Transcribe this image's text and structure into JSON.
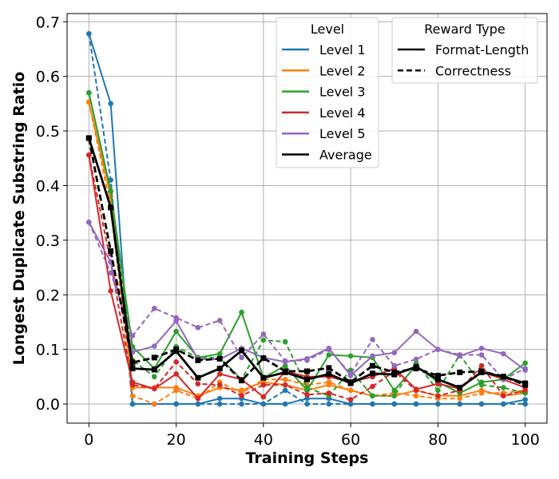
{
  "chart_data": {
    "type": "line",
    "title": "",
    "xlabel": "Training Steps",
    "ylabel": "Longest Duplicate Substring Ratio",
    "xlim": [
      -5,
      105
    ],
    "ylim": [
      -0.035,
      0.715
    ],
    "xticks": [
      0,
      20,
      40,
      60,
      80,
      100
    ],
    "yticks": [
      0.0,
      0.1,
      0.2,
      0.3,
      0.4,
      0.5,
      0.6,
      0.7
    ],
    "grid": true,
    "legend_level": {
      "title": "Level",
      "placement": "top-center",
      "entries": [
        {
          "label": "Level 1",
          "color": "#1f77b4"
        },
        {
          "label": "Level 2",
          "color": "#ff7f0e"
        },
        {
          "label": "Level 3",
          "color": "#2ca02c"
        },
        {
          "label": "Level 4",
          "color": "#d62728"
        },
        {
          "label": "Level 5",
          "color": "#9467bd"
        },
        {
          "label": "Average",
          "color": "#000000"
        }
      ]
    },
    "legend_reward": {
      "title": "Reward Type",
      "placement": "top-right",
      "entries": [
        {
          "label": "Format-Length",
          "style": "solid"
        },
        {
          "label": "Correctness",
          "style": "dashed"
        }
      ]
    },
    "x": [
      0,
      5,
      10,
      15,
      20,
      25,
      30,
      35,
      40,
      45,
      50,
      55,
      60,
      65,
      70,
      75,
      80,
      85,
      90,
      95,
      100
    ],
    "series": [
      {
        "name": "Level 1",
        "reward": "Format-Length",
        "color": "#1f77b4",
        "style": "solid",
        "marker": "circle",
        "values": [
          0.678,
          0.55,
          0.0,
          0.0,
          0.0,
          0.0,
          0.01,
          0.01,
          0.0,
          0.0,
          0.01,
          0.01,
          0.0,
          0.0,
          0.0,
          0.0,
          0.0,
          0.0,
          0.0,
          0.0,
          0.008
        ]
      },
      {
        "name": "Level 1",
        "reward": "Correctness",
        "color": "#1f77b4",
        "style": "dashed",
        "marker": "circle",
        "values": [
          0.678,
          0.41,
          0.0,
          0.0,
          0.0,
          0.0,
          0.0,
          0.0,
          0.0,
          0.025,
          0.0,
          0.0,
          0.0,
          0.0,
          0.0,
          0.0,
          0.0,
          0.0,
          0.0,
          0.0,
          0.0
        ]
      },
      {
        "name": "Level 2",
        "reward": "Format-Length",
        "color": "#ff7f0e",
        "style": "solid",
        "marker": "circle",
        "values": [
          0.553,
          0.38,
          0.03,
          0.03,
          0.03,
          0.015,
          0.03,
          0.025,
          0.04,
          0.035,
          0.025,
          0.035,
          0.025,
          0.015,
          0.015,
          0.025,
          0.015,
          0.015,
          0.025,
          0.015,
          0.02
        ]
      },
      {
        "name": "Level 2",
        "reward": "Correctness",
        "color": "#ff7f0e",
        "style": "dashed",
        "marker": "circle",
        "values": [
          0.553,
          0.36,
          0.015,
          0.0,
          0.025,
          0.01,
          0.04,
          0.02,
          0.045,
          0.045,
          0.035,
          0.04,
          0.025,
          0.015,
          0.02,
          0.015,
          0.01,
          0.01,
          0.02,
          0.02,
          0.025
        ]
      },
      {
        "name": "Level 3",
        "reward": "Format-Length",
        "color": "#2ca02c",
        "style": "solid",
        "marker": "circle",
        "values": [
          0.57,
          0.39,
          0.105,
          0.065,
          0.133,
          0.085,
          0.092,
          0.168,
          0.048,
          0.07,
          0.025,
          0.09,
          0.088,
          0.085,
          0.025,
          0.07,
          0.04,
          0.02,
          0.04,
          0.045,
          0.075
        ]
      },
      {
        "name": "Level 3",
        "reward": "Correctness",
        "color": "#2ca02c",
        "style": "dashed",
        "marker": "circle",
        "values": [
          0.57,
          0.39,
          0.08,
          0.05,
          0.105,
          0.085,
          0.085,
          0.045,
          0.117,
          0.114,
          0.03,
          0.015,
          0.062,
          0.015,
          0.015,
          0.075,
          0.025,
          0.09,
          0.035,
          0.03,
          0.02
        ]
      },
      {
        "name": "Level 4",
        "reward": "Format-Length",
        "color": "#d62728",
        "style": "solid",
        "marker": "circle",
        "values": [
          0.456,
          0.207,
          0.04,
          0.028,
          0.055,
          0.01,
          0.055,
          0.045,
          0.013,
          0.06,
          0.05,
          0.05,
          0.04,
          0.05,
          0.065,
          0.027,
          0.037,
          0.028,
          0.06,
          0.045,
          0.03
        ]
      },
      {
        "name": "Level 4",
        "reward": "Correctness",
        "color": "#d62728",
        "style": "dashed",
        "marker": "circle",
        "values": [
          0.456,
          0.26,
          0.035,
          0.028,
          0.077,
          0.037,
          0.035,
          0.015,
          0.035,
          0.035,
          0.017,
          0.02,
          0.008,
          0.032,
          0.06,
          0.025,
          0.015,
          0.025,
          0.07,
          0.015,
          0.025
        ]
      },
      {
        "name": "Level 5",
        "reward": "Format-Length",
        "color": "#9467bd",
        "style": "solid",
        "marker": "circle",
        "values": [
          0.333,
          0.26,
          0.095,
          0.106,
          0.152,
          0.082,
          0.082,
          0.102,
          0.085,
          0.077,
          0.083,
          0.102,
          0.052,
          0.088,
          0.094,
          0.133,
          0.1,
          0.088,
          0.102,
          0.092,
          0.062
        ]
      },
      {
        "name": "Level 5",
        "reward": "Correctness",
        "color": "#9467bd",
        "style": "dashed",
        "marker": "circle",
        "values": [
          0.333,
          0.24,
          0.125,
          0.175,
          0.158,
          0.14,
          0.153,
          0.085,
          0.128,
          0.079,
          0.08,
          0.1,
          0.055,
          0.118,
          0.07,
          0.082,
          0.1,
          0.09,
          0.09,
          0.045,
          0.065
        ]
      },
      {
        "name": "Average",
        "reward": "Format-Length",
        "color": "#000000",
        "style": "solid",
        "marker": "square",
        "values": [
          0.487,
          0.36,
          0.065,
          0.063,
          0.097,
          0.048,
          0.065,
          0.098,
          0.048,
          0.058,
          0.045,
          0.055,
          0.038,
          0.056,
          0.054,
          0.068,
          0.045,
          0.03,
          0.058,
          0.05,
          0.038
        ]
      },
      {
        "name": "Average",
        "reward": "Correctness",
        "color": "#000000",
        "style": "dashed",
        "marker": "square",
        "values": [
          0.487,
          0.28,
          0.076,
          0.085,
          0.1,
          0.08,
          0.083,
          0.043,
          0.084,
          0.06,
          0.06,
          0.066,
          0.04,
          0.07,
          0.058,
          0.065,
          0.052,
          0.058,
          0.06,
          0.05,
          0.035
        ]
      }
    ]
  }
}
